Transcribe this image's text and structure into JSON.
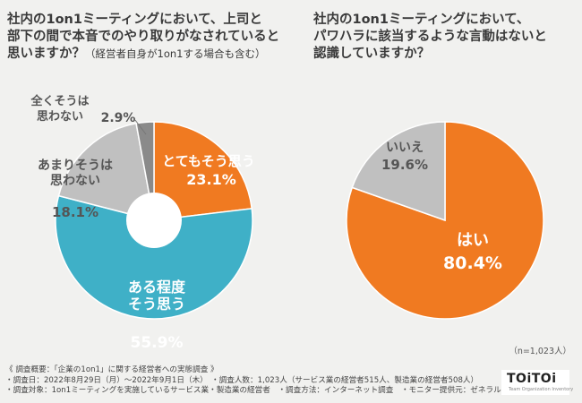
{
  "questions": {
    "q1": {
      "line1": "社内の1on1ミーティングにおいて、上司と",
      "line2": "部下の間で本音でのやり取りがなされていると",
      "line3": "思いますか？",
      "line3_note": "（経営者自身が1on1する場合も含む）"
    },
    "q2": {
      "line1": "社内の1on1ミーティングにおいて、",
      "line2": "パワハラに該当するような言動はないと",
      "line3": "認識していますか？"
    }
  },
  "chart_data": [
    {
      "type": "pie",
      "variant": "donut",
      "title": "社内の1on1ミーティングにおいて、上司と部下の間で本音でのやり取りがなされていると思いますか？",
      "unit": "%",
      "slices": [
        {
          "name": "とてもそう思う",
          "value": 23.1,
          "label_lines": [
            "とてもそう思う"
          ],
          "value_label": "23.1%",
          "color": "#f07a21",
          "label_color": "#ffffff"
        },
        {
          "name": "ある程度そう思う",
          "value": 55.9,
          "label_lines": [
            "ある程度",
            "そう思う"
          ],
          "value_label": "55.9%",
          "color": "#3fb0c7",
          "label_color": "#ffffff"
        },
        {
          "name": "あまりそうは思わない",
          "value": 18.1,
          "label_lines": [
            "あまりそうは",
            "思わない"
          ],
          "value_label": "18.1%",
          "color": "#c0c0c0",
          "label_color": "#555555"
        },
        {
          "name": "全くそうは思わない",
          "value": 2.9,
          "label_lines": [
            "全くそうは",
            "思わない"
          ],
          "value_label": "2.9%",
          "color": "#8a8a8a",
          "label_color": "#555555"
        }
      ]
    },
    {
      "type": "pie",
      "title": "社内の1on1ミーティングにおいて、パワハラに該当するような言動はないと認識していますか？",
      "unit": "%",
      "slices": [
        {
          "name": "はい",
          "value": 80.4,
          "label_lines": [
            "はい"
          ],
          "value_label": "80.4%",
          "color": "#f07a21",
          "label_color": "#ffffff"
        },
        {
          "name": "いいえ",
          "value": 19.6,
          "label_lines": [
            "いいえ"
          ],
          "value_label": "19.6%",
          "color": "#c0c0c0",
          "label_color": "#555555"
        }
      ]
    }
  ],
  "sample_note": "（n=1,023人）",
  "footer": {
    "line1": "《 調査概要：「企業の1on1」に関する経営者への実態調査 》",
    "line2": "・調査日：2022年8月29日（月）～2022年9月1日（木）　・調査人数：1,023人（サービス業の経営者515人、製造業の経営者508人）",
    "line3": "・調査対象：1on1ミーティングを実施しているサービス業・製造業の経営者　・調査方法：インターネット調査　・モニター提供元：ゼネラルリサーチ"
  },
  "logo": {
    "name": "TOiTOi",
    "tagline": "Team Organization Inventory"
  }
}
